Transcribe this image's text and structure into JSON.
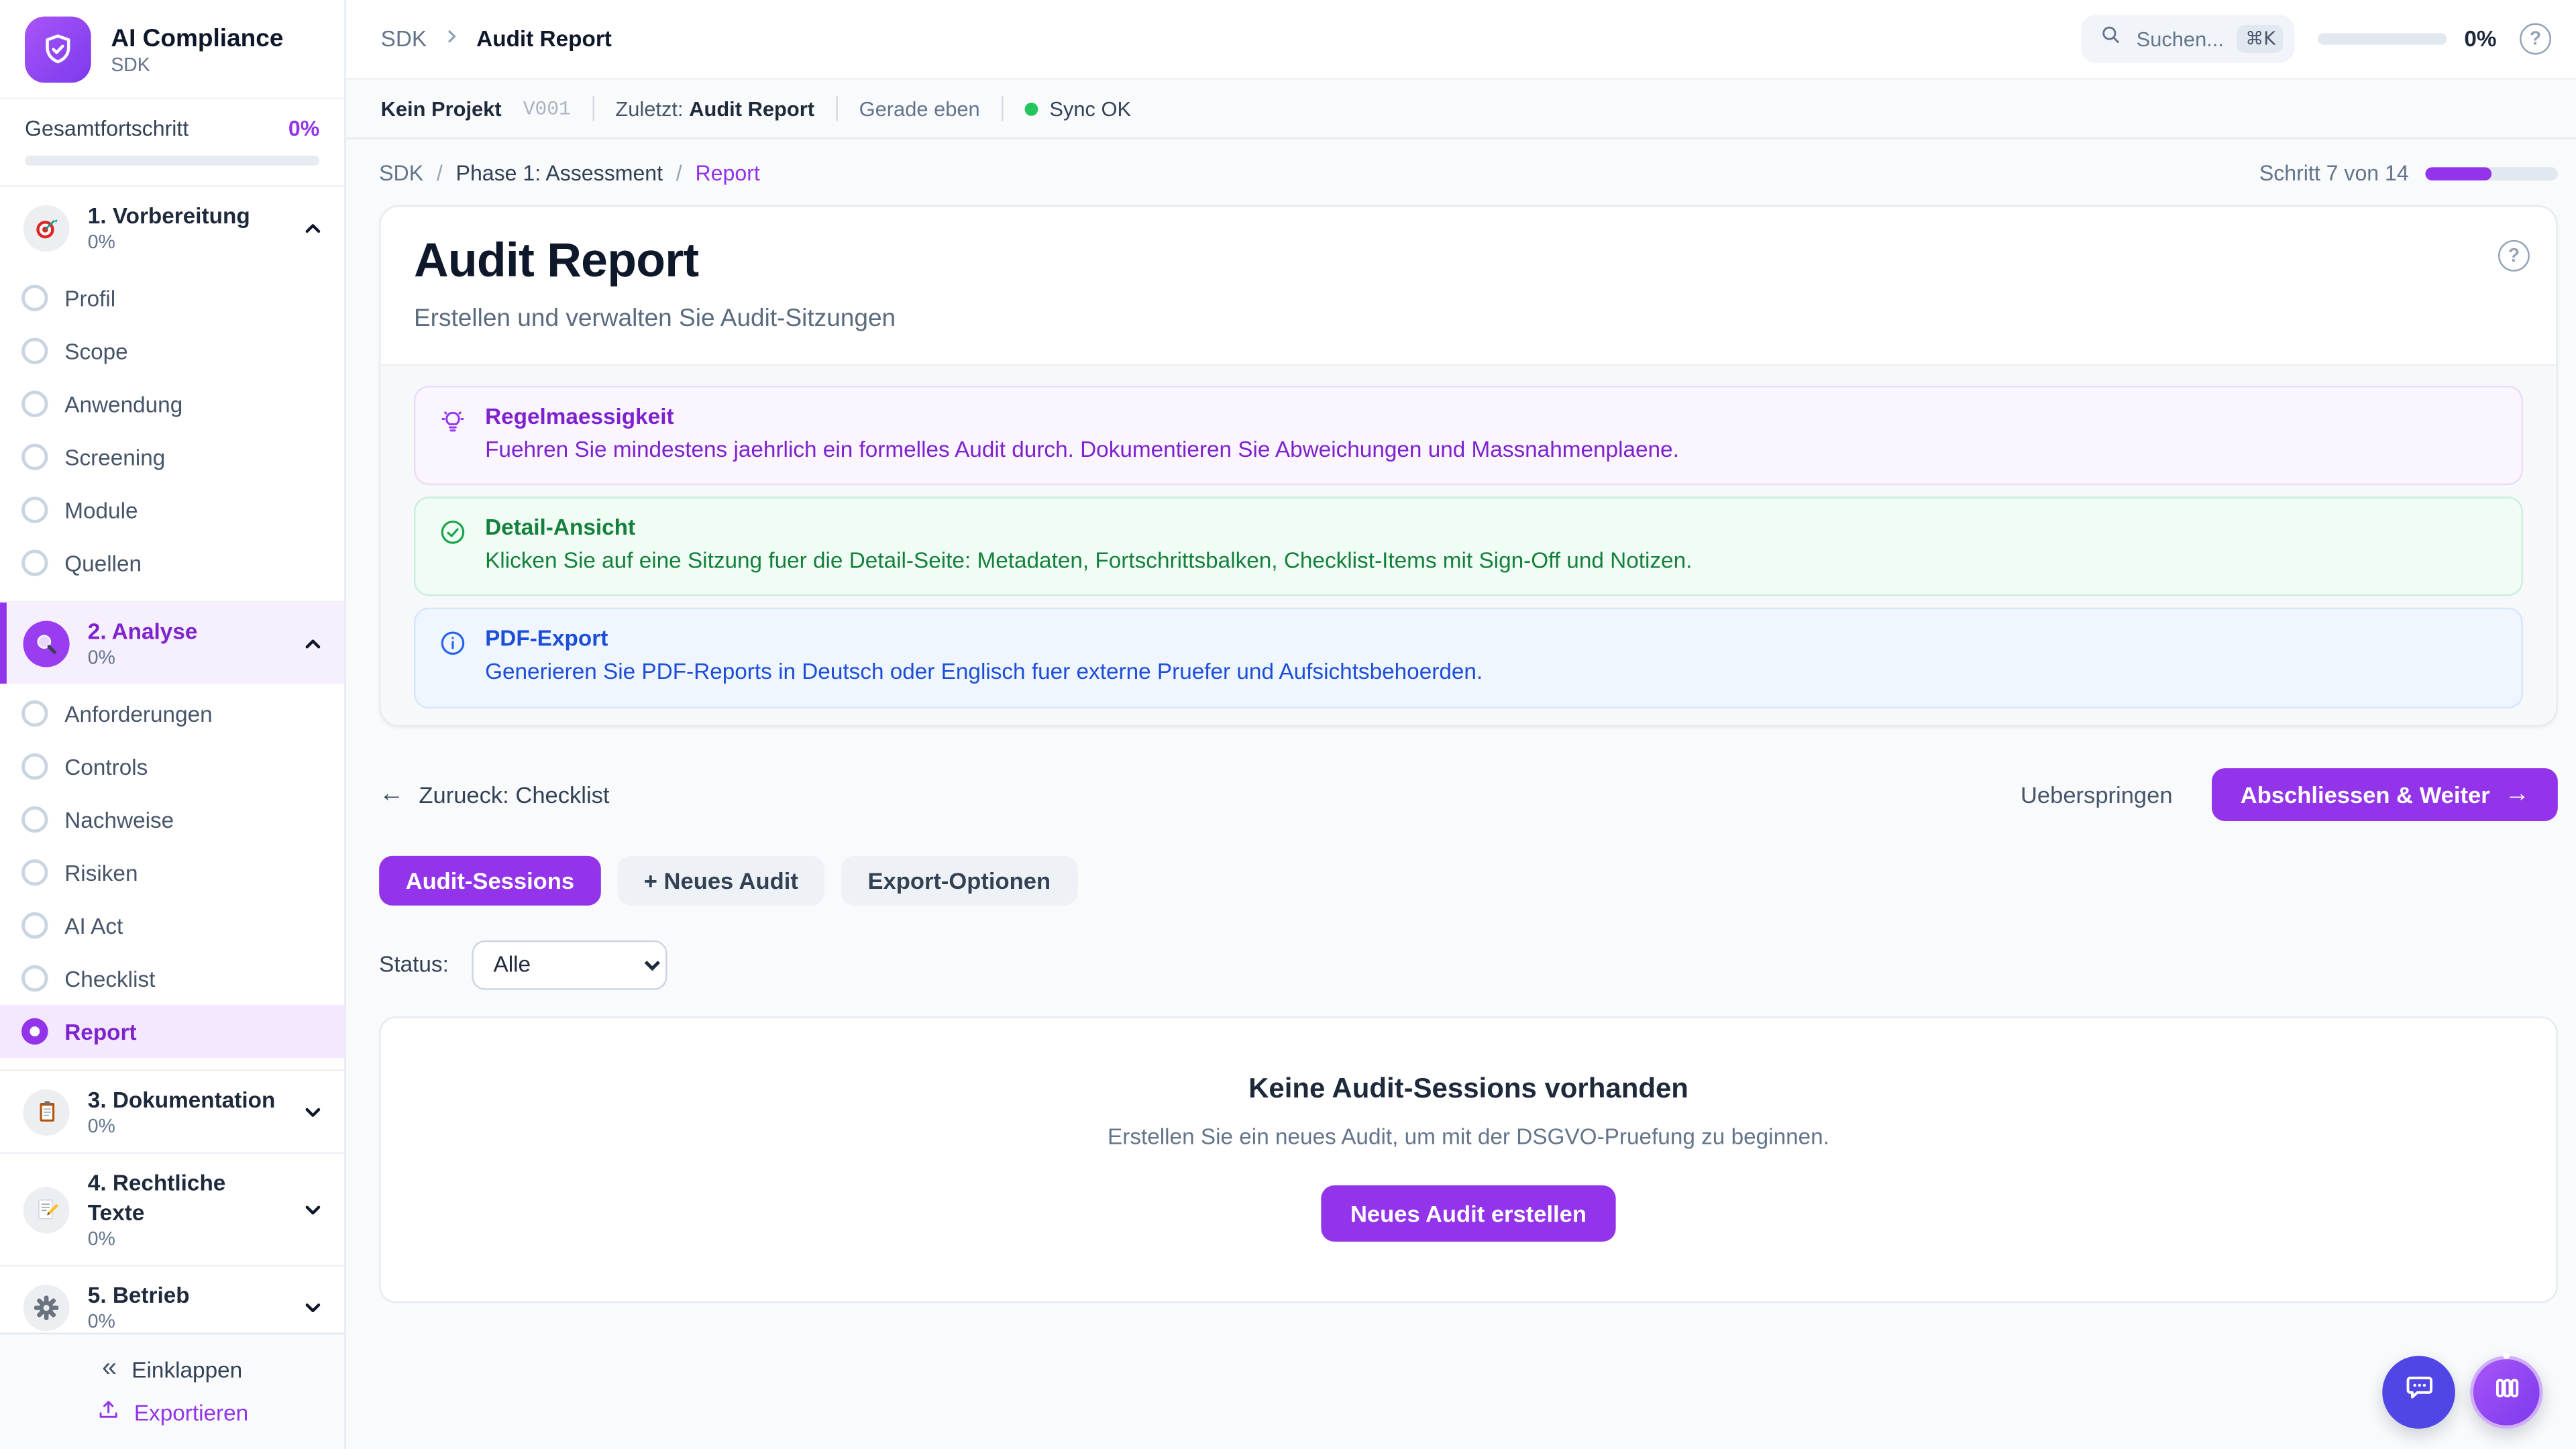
{
  "colors": {
    "accent": "#9333ea",
    "accent_dark": "#7e22ce",
    "tip_purple": "#7e22ce",
    "success_green": "#15803d",
    "info_blue": "#1d4ed8",
    "sync_green": "#22c55e",
    "chat_indigo": "#4f46e5"
  },
  "sidebar": {
    "app_title": "AI Compliance",
    "app_subtitle": "SDK",
    "logo_icon": "shield-check-icon",
    "overall_label": "Gesamtfortschritt",
    "overall_percent": "0%",
    "overall_progress_width": "0%",
    "sections": [
      {
        "label": "1. Vorbereitung",
        "percent": "0%",
        "icon": "target-icon",
        "state": "expanded",
        "items": [
          {
            "label": "Profil"
          },
          {
            "label": "Scope"
          },
          {
            "label": "Anwendung"
          },
          {
            "label": "Screening"
          },
          {
            "label": "Module"
          },
          {
            "label": "Quellen"
          }
        ]
      },
      {
        "label": "2. Analyse",
        "percent": "0%",
        "icon": "magnifier-icon",
        "state": "expanded",
        "items": [
          {
            "label": "Anforderungen"
          },
          {
            "label": "Controls"
          },
          {
            "label": "Nachweise"
          },
          {
            "label": "Risiken"
          },
          {
            "label": "AI Act"
          },
          {
            "label": "Checklist"
          },
          {
            "label": "Report",
            "active": true
          }
        ]
      },
      {
        "label": "3. Dokumentation",
        "percent": "0%",
        "icon": "clipboard-icon",
        "state": "collapsed",
        "items": []
      },
      {
        "label": "4. Rechtliche Texte",
        "percent": "0%",
        "icon": "memo-icon",
        "state": "collapsed",
        "items": []
      },
      {
        "label": "5. Betrieb",
        "percent": "0%",
        "icon": "gear-icon",
        "state": "collapsed",
        "items": []
      }
    ],
    "footer": {
      "collapse_label": "Einklappen",
      "collapse_icon": "chevrons-left-icon",
      "export_label": "Exportieren",
      "export_icon": "upload-icon"
    }
  },
  "topbar": {
    "crumb_root": "SDK",
    "crumb_current": "Audit Report",
    "search_placeholder": "Suchen...",
    "search_shortcut": "⌘K",
    "progress_percent": "0%",
    "progress_width": "0%",
    "help_icon": "question-circle-icon"
  },
  "subbar": {
    "project": "Kein Projekt",
    "version": "V001",
    "last_label": "Zuletzt:",
    "last_value": "Audit Report",
    "time": "Gerade eben",
    "sync": "Sync OK"
  },
  "page": {
    "crumb_root": "SDK",
    "crumb_sep1": "/",
    "crumb_phase": "Phase 1: Assessment",
    "crumb_sep2": "/",
    "crumb_current": "Report",
    "step_label": "Schritt 7 von 14",
    "step_progress_width": "50%"
  },
  "card": {
    "title": "Audit Report",
    "subtitle": "Erstellen und verwalten Sie Audit-Sitzungen",
    "help_icon": "question-circle-icon",
    "info_boxes": [
      {
        "type": "tip",
        "icon": "lightbulb-icon",
        "title": "Regelmaessigkeit",
        "text": "Fuehren Sie mindestens jaehrlich ein formelles Audit durch. Dokumentieren Sie Abweichungen und Massnahmenplaene."
      },
      {
        "type": "success",
        "icon": "check-circle-icon",
        "title": "Detail-Ansicht",
        "text": "Klicken Sie auf eine Sitzung fuer die Detail-Seite: Metadaten, Fortschrittsbalken, Checklist-Items mit Sign-Off und Notizen."
      },
      {
        "type": "info",
        "icon": "info-circle-icon",
        "title": "PDF-Export",
        "text": "Generieren Sie PDF-Reports in Deutsch oder Englisch fuer externe Pruefer und Aufsichtsbehoerden."
      }
    ]
  },
  "wizard_nav": {
    "back_arrow": "←",
    "back_label": "Zurueck: Checklist",
    "skip_label": "Ueberspringen",
    "next_label": "Abschliessen & Weiter",
    "next_arrow": "→"
  },
  "tabs": [
    {
      "label": "Audit-Sessions",
      "active": true
    },
    {
      "label": "+ Neues Audit",
      "active": false
    },
    {
      "label": "Export-Optionen",
      "active": false
    }
  ],
  "filter": {
    "label": "Status:",
    "value": "Alle"
  },
  "empty_state": {
    "title": "Keine Audit-Sessions vorhanden",
    "text": "Erstellen Sie ein neues Audit, um mit der DSGVO-Pruefung zu beginnen.",
    "button_label": "Neues Audit erstellen"
  },
  "fabs": {
    "chat": "chat-bubble-icon",
    "board": "columns-icon"
  }
}
